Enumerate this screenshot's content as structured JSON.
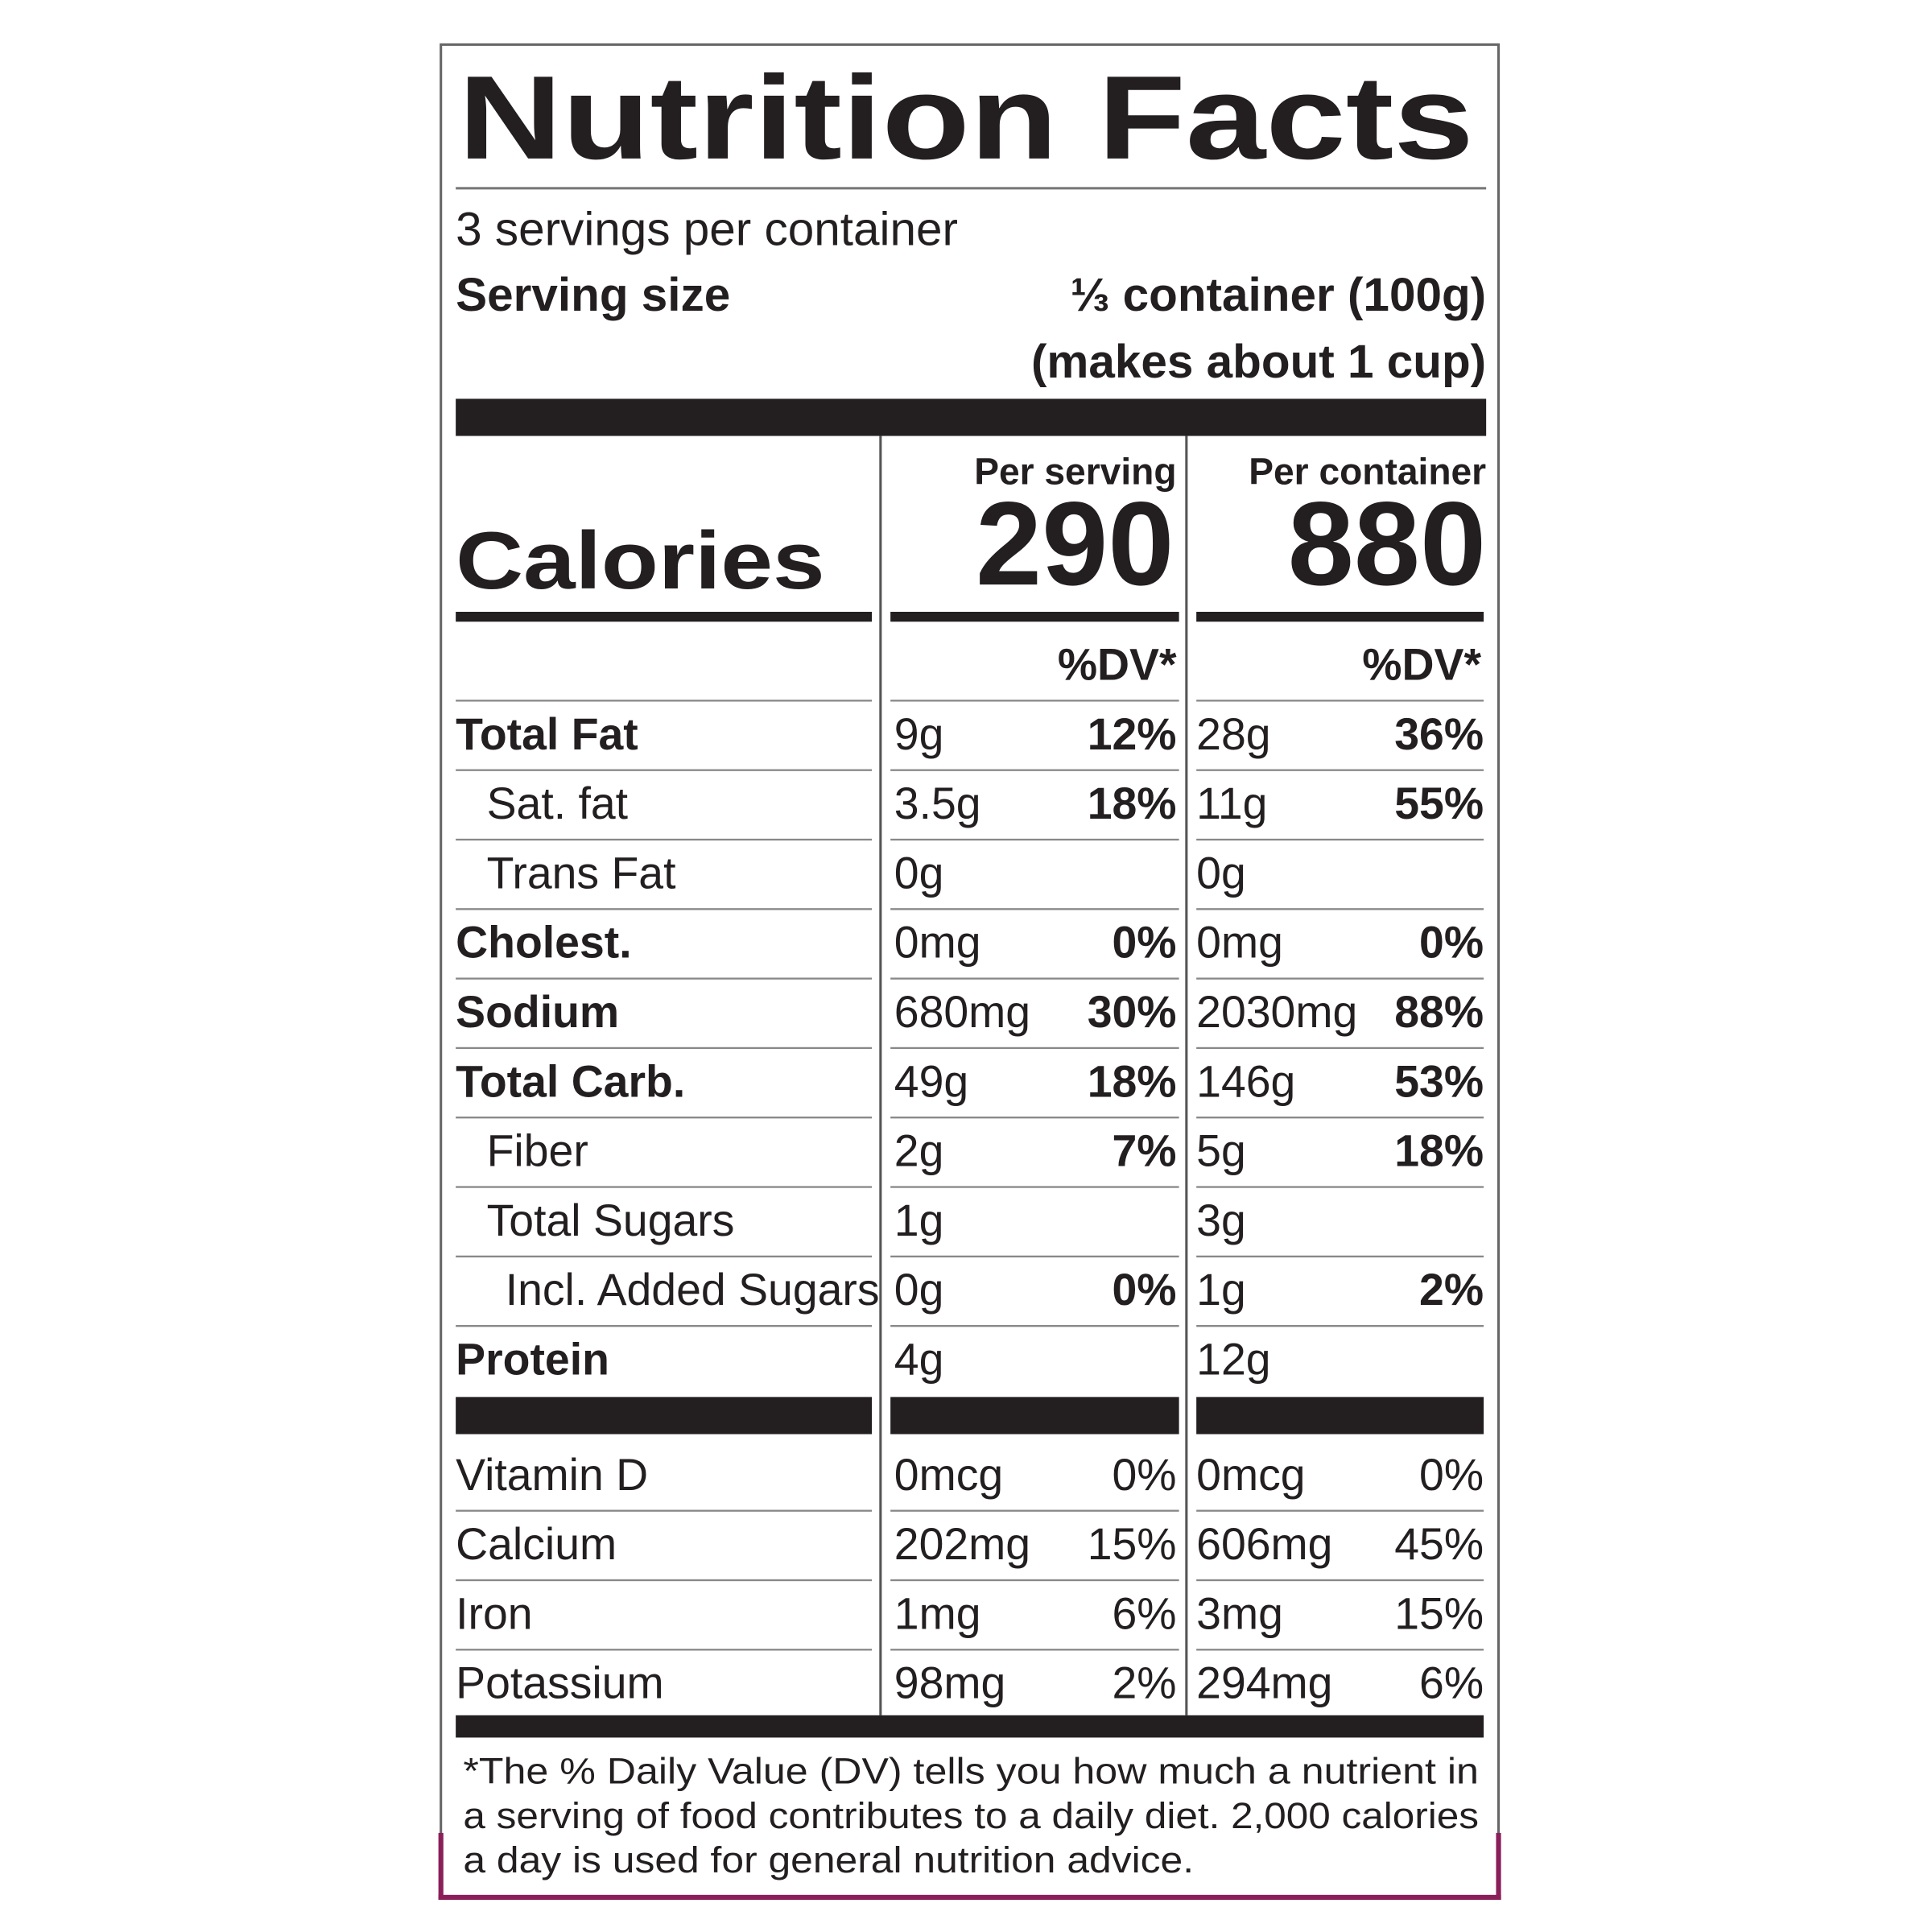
{
  "header": {
    "title": "Nutrition Facts",
    "servings": "3 servings per container",
    "serving_size_label": "Serving size",
    "serving_size": "⅓ container (100g)",
    "serving_note": "(makes about 1 cup)"
  },
  "columns": [
    "Per serving",
    "Per container"
  ],
  "calories": {
    "label": "Calories",
    "values": [
      "290",
      "880"
    ]
  },
  "dv_header": [
    "%DV*",
    "%DV*"
  ],
  "nutrients": [
    {
      "name": "Total Fat",
      "per_serving": [
        "9g",
        "12%"
      ],
      "per_container": [
        "28g",
        "36%"
      ]
    },
    {
      "name": "Sat. fat",
      "per_serving": [
        "3.5g",
        "18%"
      ],
      "per_container": [
        "11g",
        "55%"
      ]
    },
    {
      "name": "Trans Fat",
      "per_serving": [
        "0g"
      ],
      "per_container": [
        "0g"
      ]
    },
    {
      "name": "Cholest.",
      "per_serving": [
        "0mg",
        "0%"
      ],
      "per_container": [
        "0mg",
        "0%"
      ]
    },
    {
      "name": "Sodium",
      "per_serving": [
        "680mg",
        "30%"
      ],
      "per_container": [
        "2030mg",
        "88%"
      ]
    },
    {
      "name": "Total Carb.",
      "per_serving": [
        "49g",
        "18%"
      ],
      "per_container": [
        "146g",
        "53%"
      ]
    },
    {
      "name": "Fiber",
      "per_serving": [
        "2g",
        "7%"
      ],
      "per_container": [
        "5g",
        "18%"
      ]
    },
    {
      "name": "Total Sugars",
      "per_serving": [
        "1g"
      ],
      "per_container": [
        "3g"
      ]
    },
    {
      "name": "Incl. Added Sugars",
      "per_serving": [
        "0g",
        "0%"
      ],
      "per_container": [
        "1g",
        "2%"
      ]
    },
    {
      "name": "Protein",
      "per_serving": [
        "4g"
      ],
      "per_container": [
        "12g"
      ]
    }
  ],
  "vitamins": [
    {
      "name": "Vitamin D",
      "per_serving": [
        "0mcg",
        "0%"
      ],
      "per_container": [
        "0mcg",
        "0%"
      ]
    },
    {
      "name": "Calcium",
      "per_serving": [
        "202mg",
        "15%"
      ],
      "per_container": [
        "606mg",
        "45%"
      ]
    },
    {
      "name": "Iron",
      "per_serving": [
        "1mg",
        "6%"
      ],
      "per_container": [
        "3mg",
        "15%"
      ]
    },
    {
      "name": "Potassium",
      "per_serving": [
        "98mg",
        "2%"
      ],
      "per_container": [
        "294mg",
        "6%"
      ]
    }
  ],
  "footnote": [
    "*The % Daily Value (DV) tells you how much a nutrient in",
    "a serving of food contributes to a daily diet. 2,000 calories",
    "a day is used for general nutrition advice."
  ]
}
